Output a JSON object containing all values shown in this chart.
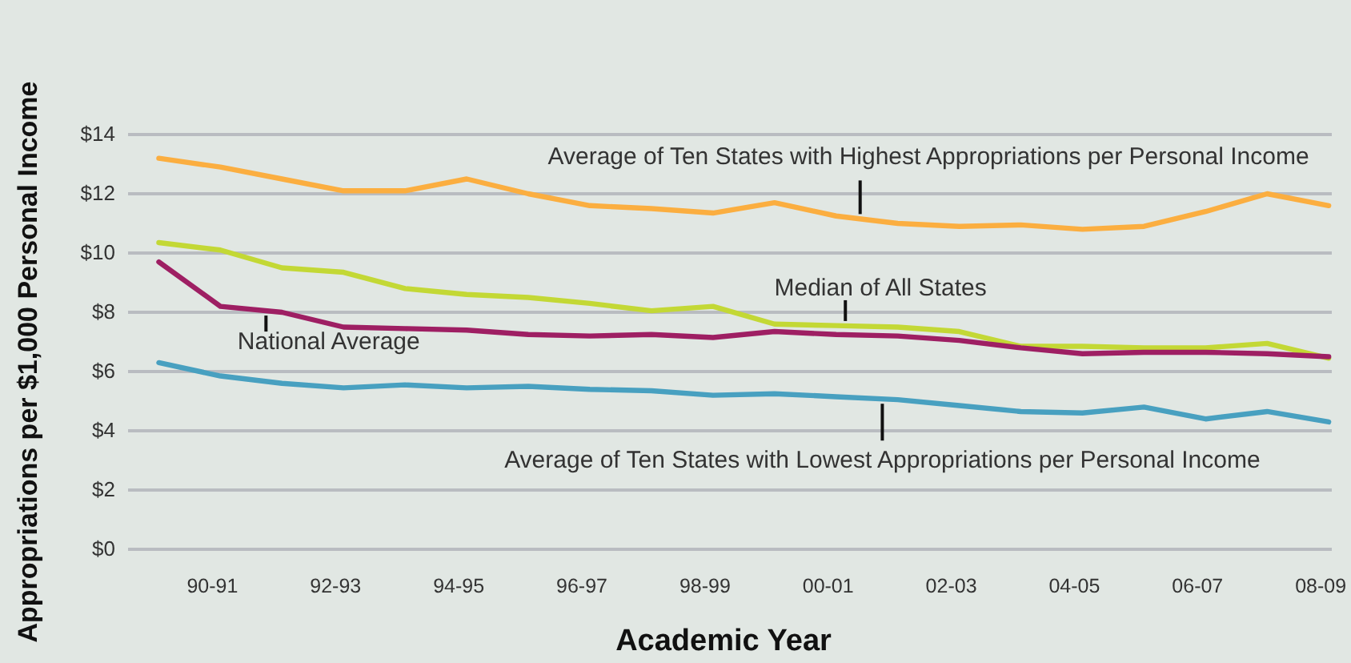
{
  "chart_data": {
    "type": "line",
    "xlabel": "Academic Year",
    "ylabel": "Appropriations per $1,000 Personal Income",
    "categories": [
      null,
      "90-91",
      null,
      "92-93",
      null,
      "94-95",
      null,
      "96-97",
      null,
      "98-99",
      null,
      "00-01",
      null,
      "02-03",
      null,
      "04-05",
      null,
      "06-07",
      null,
      "08-09"
    ],
    "series": [
      {
        "name": "Average of Ten States with Highest Appropriations per Personal Income",
        "color": "#fbae40",
        "values": [
          13.2,
          12.9,
          12.5,
          12.1,
          12.1,
          12.5,
          12.0,
          11.6,
          11.5,
          11.35,
          11.7,
          11.25,
          11.0,
          10.9,
          10.95,
          10.8,
          10.9,
          11.4,
          12.0,
          11.6
        ]
      },
      {
        "name": "Median of All States",
        "color": "#c3d835",
        "values": [
          10.35,
          10.1,
          9.5,
          9.35,
          8.8,
          8.6,
          8.5,
          8.3,
          8.05,
          8.2,
          7.6,
          7.55,
          7.5,
          7.35,
          6.85,
          6.85,
          6.8,
          6.8,
          6.95,
          6.45
        ]
      },
      {
        "name": "National Average",
        "color": "#9e1f63",
        "values": [
          9.7,
          8.2,
          8.0,
          7.5,
          7.45,
          7.4,
          7.25,
          7.2,
          7.25,
          7.15,
          7.35,
          7.25,
          7.2,
          7.05,
          6.8,
          6.6,
          6.65,
          6.65,
          6.6,
          6.5
        ]
      },
      {
        "name": "Average of Ten States with Lowest Appropriations per Personal Income",
        "color": "#48a0c0",
        "values": [
          6.3,
          5.85,
          5.6,
          5.45,
          5.55,
          5.45,
          5.5,
          5.4,
          5.35,
          5.2,
          5.25,
          5.15,
          5.05,
          4.85,
          4.65,
          4.6,
          4.8,
          4.4,
          4.65,
          4.3
        ]
      }
    ],
    "ylim": [
      0,
      14
    ],
    "yticks": [
      {
        "value": 0,
        "label": "$0"
      },
      {
        "value": 2,
        "label": "$2"
      },
      {
        "value": 4,
        "label": "$4"
      },
      {
        "value": 6,
        "label": "$6"
      },
      {
        "value": 8,
        "label": "$8"
      },
      {
        "value": 10,
        "label": "$10"
      },
      {
        "value": 12,
        "label": "$12"
      },
      {
        "value": 14,
        "label": "$14"
      }
    ],
    "grid": "y",
    "legend": false
  }
}
